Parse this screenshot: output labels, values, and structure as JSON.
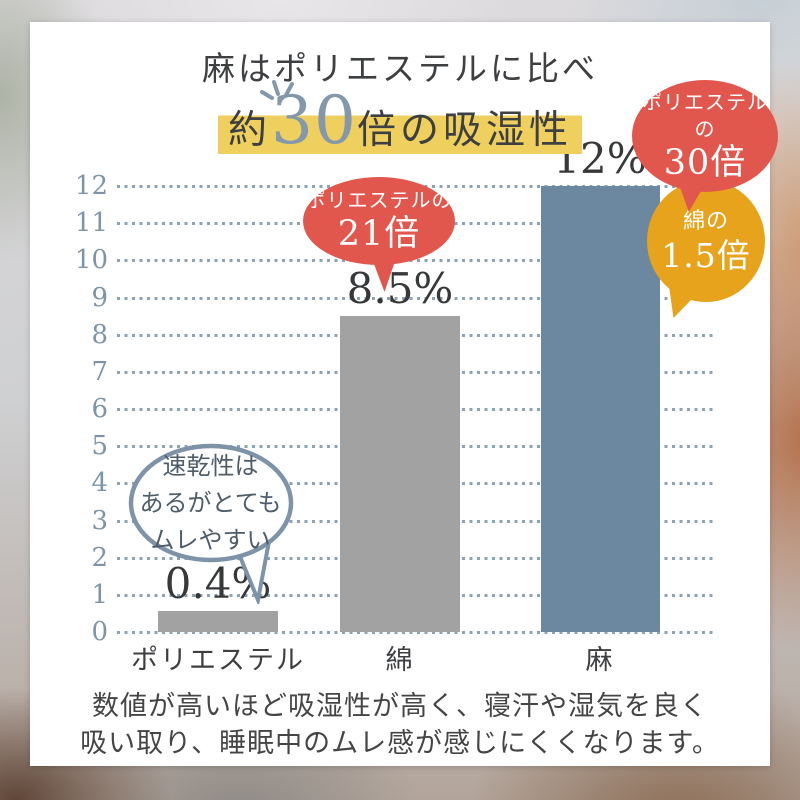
{
  "title": {
    "line1": "麻はポリエステルに比べ",
    "line2_prefix": "約",
    "line2_big": "30",
    "line2_suffix": "倍の吸湿性",
    "highlight_color": "#efd05f",
    "big_color": "#8498ab"
  },
  "chart_data": {
    "type": "bar",
    "categories": [
      "ポリエステル",
      "綿",
      "麻"
    ],
    "values": [
      0.4,
      8.5,
      12
    ],
    "value_labels": [
      "0.4%",
      "8.5%",
      "12%"
    ],
    "bar_colors": [
      "#a2a2a2",
      "#a2a2a2",
      "#6c87a0"
    ],
    "title": "約30倍の吸湿性",
    "xlabel": "",
    "ylabel": "",
    "ylim": [
      0,
      12
    ],
    "yticks": [
      0,
      1,
      2,
      3,
      4,
      5,
      6,
      7,
      8,
      9,
      10,
      11,
      12
    ],
    "grid": "dotted-horizontal",
    "grid_color": "#8ca2b5",
    "tick_color": "#7e95a9"
  },
  "bubbles": {
    "cotton": {
      "line1": "ポリエステルの",
      "line2": "21倍",
      "color": "#e2574d"
    },
    "linen_red": {
      "line1": "ポリエステルの",
      "line2": "30倍",
      "color": "#e2574d"
    },
    "linen_orange": {
      "line1": "綿の",
      "line2": "1.5倍",
      "color": "#e7a31c"
    },
    "polyester_note": {
      "line1": "速乾性は",
      "line2": "あるがとても",
      "line3": "ムレやすい",
      "outline_color": "#7e93a8"
    }
  },
  "footer": {
    "line1": "数値が高いほど吸湿性が高く、寝汗や湿気を良く",
    "line2": "吸い取り、睡眠中のムレ感が感じにくくなります。"
  }
}
